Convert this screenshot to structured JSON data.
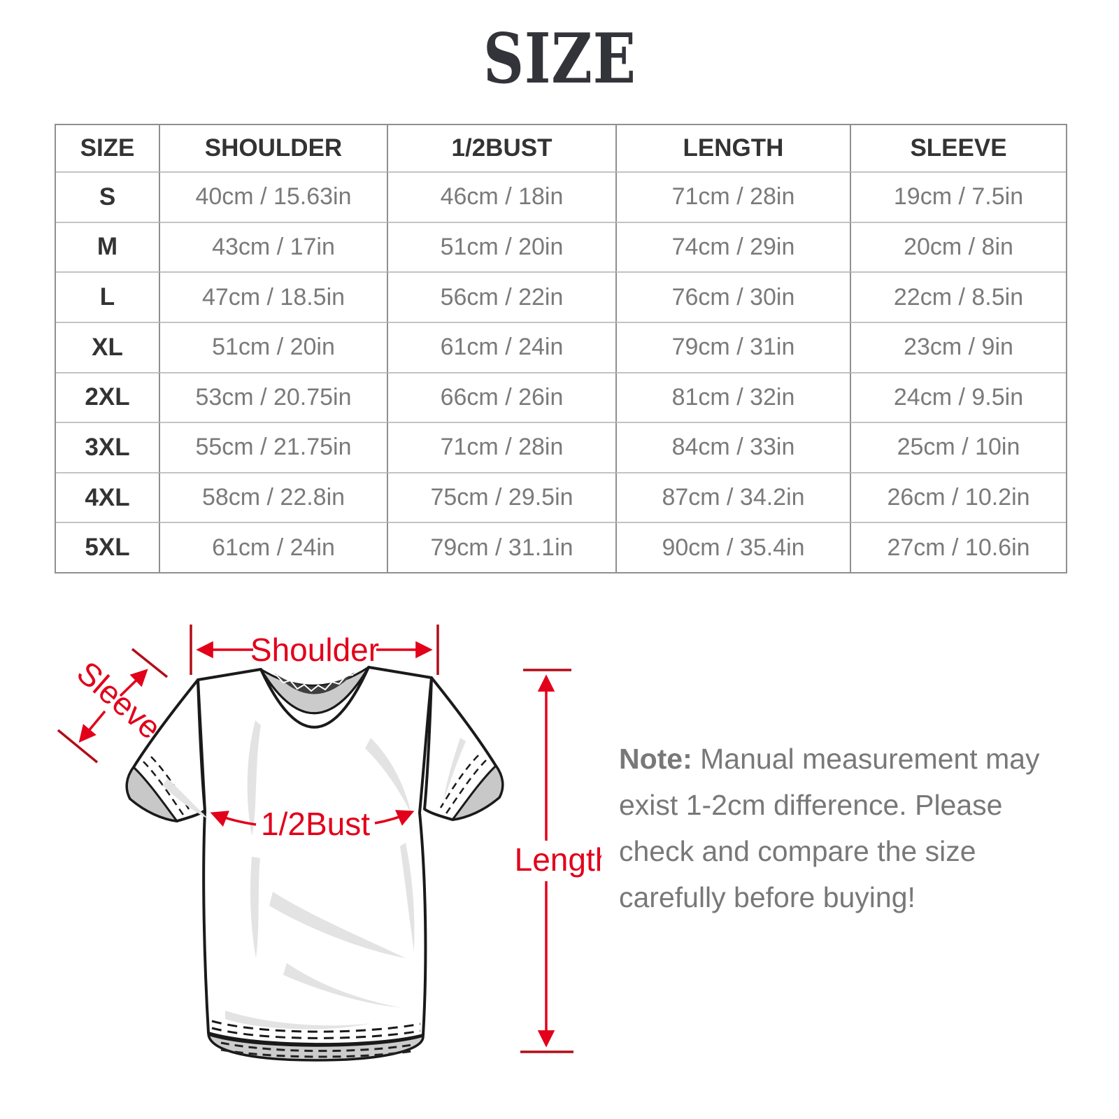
{
  "title": "SIZE",
  "colors": {
    "accent_red": "#e2001a",
    "tick_red": "#b20d18",
    "header_text": "#333333",
    "data_text": "#7a7a7a",
    "border_dark": "#8f8f8f",
    "border_light": "#c3c3c3",
    "shirt_outline": "#1a1a1a",
    "shirt_inner_gray": "#cbcbcb"
  },
  "table": {
    "headers": [
      "SIZE",
      "SHOULDER",
      "1/2BUST",
      "LENGTH",
      "SLEEVE"
    ],
    "rows": [
      [
        "S",
        "40cm / 15.63in",
        "46cm / 18in",
        "71cm / 28in",
        "19cm / 7.5in"
      ],
      [
        "M",
        "43cm / 17in",
        "51cm / 20in",
        "74cm / 29in",
        "20cm / 8in"
      ],
      [
        "L",
        "47cm / 18.5in",
        "56cm / 22in",
        "76cm / 30in",
        "22cm / 8.5in"
      ],
      [
        "XL",
        "51cm / 20in",
        "61cm / 24in",
        "79cm / 31in",
        "23cm / 9in"
      ],
      [
        "2XL",
        "53cm / 20.75in",
        "66cm / 26in",
        "81cm / 32in",
        "24cm / 9.5in"
      ],
      [
        "3XL",
        "55cm / 21.75in",
        "71cm / 28in",
        "84cm / 33in",
        "25cm / 10in"
      ],
      [
        "4XL",
        "58cm / 22.8in",
        "75cm / 29.5in",
        "87cm / 34.2in",
        "26cm / 10.2in"
      ],
      [
        "5XL",
        "61cm / 24in",
        "79cm / 31.1in",
        "90cm / 35.4in",
        "27cm / 10.6in"
      ]
    ]
  },
  "diagram": {
    "labels": {
      "shoulder": "Shoulder",
      "sleeve": "Sleeve",
      "half_bust": "1/2Bust",
      "length": "Length"
    }
  },
  "note": {
    "label": "Note:",
    "line1": " Manual measurement may",
    "line2": "exist 1-2cm difference. Please",
    "line3": "check and compare the size",
    "line4": "carefully before buying!"
  }
}
